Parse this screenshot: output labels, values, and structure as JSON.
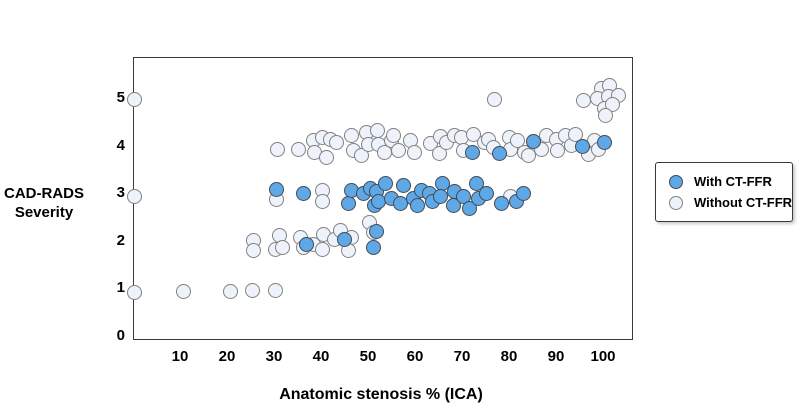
{
  "figure": {
    "ylabel_line1": "CAD-RADS",
    "ylabel_line2": "Severity",
    "xlabel": "Anatomic stenosis % (ICA)"
  },
  "legend": {
    "items": [
      {
        "label": "With CT-FFR",
        "marker": "filled"
      },
      {
        "label": "Without CT-FFR",
        "marker": "open"
      }
    ]
  },
  "colors": {
    "with_ctffr_fill": "#5FA8E8",
    "with_ctffr_border": "#45494F",
    "without_ctffr_fill": "#EEF2FA",
    "without_ctffr_border": "#808080",
    "axis": "#3A3A3A",
    "text": "#000000",
    "background": "#FFFFFF"
  },
  "chart_data": {
    "type": "scatter",
    "title": "",
    "xlabel": "Anatomic stenosis % (ICA)",
    "ylabel": "CAD-RADS Severity",
    "xlim": [
      0,
      106
    ],
    "ylim": [
      0,
      5.9
    ],
    "x_ticks": [
      10,
      20,
      30,
      40,
      50,
      60,
      70,
      80,
      90,
      100
    ],
    "y_ticks": [
      0,
      1,
      2,
      3,
      4,
      5
    ],
    "grid": false,
    "legend_position": "right",
    "series": [
      {
        "name": "Without CT-FFR",
        "marker": "open",
        "points": [
          [
            0,
            0.94
          ],
          [
            10.6,
            0.96
          ],
          [
            20.6,
            0.96
          ],
          [
            25.3,
            0.98
          ],
          [
            30.2,
            0.98
          ],
          [
            25.5,
            2.02
          ],
          [
            25.5,
            1.81
          ],
          [
            30.9,
            2.13
          ],
          [
            30.2,
            1.83
          ],
          [
            31.7,
            1.88
          ],
          [
            35.5,
            2.08
          ],
          [
            36.0,
            1.88
          ],
          [
            38.1,
            1.94
          ],
          [
            40.4,
            2.15
          ],
          [
            40.2,
            1.83
          ],
          [
            42.6,
            2.04
          ],
          [
            44.0,
            2.23
          ],
          [
            46.2,
            2.08
          ],
          [
            45.7,
            1.81
          ],
          [
            50.0,
            2.4
          ],
          [
            50.9,
            2.19
          ],
          [
            0,
            2.96
          ],
          [
            30.4,
            2.88
          ],
          [
            40.2,
            3.08
          ],
          [
            40.2,
            2.85
          ],
          [
            80.2,
            2.96
          ],
          [
            30.6,
            3.94
          ],
          [
            35.1,
            3.94
          ],
          [
            38.1,
            4.13
          ],
          [
            38.3,
            3.88
          ],
          [
            40.2,
            4.19
          ],
          [
            40.9,
            3.77
          ],
          [
            41.9,
            4.15
          ],
          [
            43.0,
            4.08
          ],
          [
            46.2,
            4.23
          ],
          [
            46.8,
            3.92
          ],
          [
            48.3,
            3.81
          ],
          [
            49.4,
            4.29
          ],
          [
            49.8,
            4.04
          ],
          [
            51.9,
            4.33
          ],
          [
            52.1,
            4.04
          ],
          [
            53.2,
            3.88
          ],
          [
            54.7,
            4.13
          ],
          [
            55.3,
            4.23
          ],
          [
            56.2,
            3.92
          ],
          [
            58.9,
            4.13
          ],
          [
            59.6,
            3.88
          ],
          [
            63.0,
            4.06
          ],
          [
            65.3,
            4.22
          ],
          [
            65.1,
            3.85
          ],
          [
            66.4,
            4.08
          ],
          [
            68.1,
            4.23
          ],
          [
            69.6,
            4.19
          ],
          [
            70.0,
            3.92
          ],
          [
            72.3,
            4.25
          ],
          [
            74.5,
            4.08
          ],
          [
            75.5,
            4.15
          ],
          [
            76.4,
            3.98
          ],
          [
            79.8,
            4.19
          ],
          [
            80.2,
            3.94
          ],
          [
            81.7,
            4.13
          ],
          [
            83.0,
            3.88
          ],
          [
            84.0,
            3.81
          ],
          [
            86.6,
            3.94
          ],
          [
            87.7,
            4.23
          ],
          [
            89.8,
            4.15
          ],
          [
            90.2,
            3.92
          ],
          [
            91.9,
            4.23
          ],
          [
            93.0,
            4.02
          ],
          [
            94.0,
            4.25
          ],
          [
            96.6,
            3.83
          ],
          [
            97.9,
            4.13
          ],
          [
            98.9,
            3.94
          ],
          [
            0,
            5.0
          ],
          [
            76.6,
            5.0
          ],
          [
            95.7,
            4.96
          ],
          [
            99.4,
            5.23
          ],
          [
            101.1,
            5.29
          ],
          [
            98.7,
            5.02
          ],
          [
            100.9,
            5.06
          ],
          [
            103.0,
            5.08
          ],
          [
            100.0,
            4.81
          ],
          [
            101.9,
            4.88
          ],
          [
            100.4,
            4.65
          ]
        ]
      },
      {
        "name": "With CT-FFR",
        "marker": "filled",
        "points": [
          [
            36.6,
            1.94
          ],
          [
            44.7,
            2.04
          ],
          [
            51.5,
            2.21
          ],
          [
            50.9,
            1.88
          ],
          [
            30.4,
            3.1
          ],
          [
            36.0,
            3.02
          ],
          [
            45.7,
            2.81
          ],
          [
            46.2,
            3.08
          ],
          [
            48.9,
            3.02
          ],
          [
            50.4,
            3.13
          ],
          [
            51.1,
            2.77
          ],
          [
            51.5,
            3.06
          ],
          [
            53.6,
            3.23
          ],
          [
            52.1,
            2.85
          ],
          [
            54.7,
            2.92
          ],
          [
            57.4,
            3.19
          ],
          [
            56.8,
            2.81
          ],
          [
            59.4,
            2.92
          ],
          [
            61.1,
            3.08
          ],
          [
            60.4,
            2.77
          ],
          [
            62.8,
            3.02
          ],
          [
            63.6,
            2.85
          ],
          [
            65.7,
            3.23
          ],
          [
            65.3,
            2.96
          ],
          [
            67.9,
            2.77
          ],
          [
            68.1,
            3.06
          ],
          [
            70.2,
            2.96
          ],
          [
            71.3,
            2.71
          ],
          [
            72.8,
            3.23
          ],
          [
            73.2,
            2.92
          ],
          [
            74.9,
            3.02
          ],
          [
            78.1,
            2.81
          ],
          [
            81.3,
            2.85
          ],
          [
            82.8,
            3.02
          ],
          [
            72.1,
            3.88
          ],
          [
            77.7,
            3.85
          ],
          [
            85.1,
            4.1
          ],
          [
            95.5,
            4.0
          ],
          [
            100.0,
            4.08
          ]
        ]
      }
    ]
  }
}
